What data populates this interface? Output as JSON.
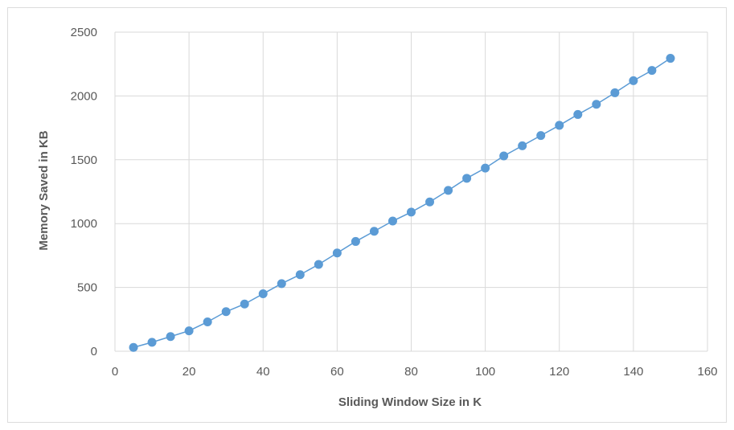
{
  "chart_data": {
    "type": "scatter",
    "title": "",
    "xlabel": "Sliding Window Size in K",
    "ylabel": "Memory Saved in KB",
    "xlim": [
      0,
      160
    ],
    "ylim": [
      0,
      2500
    ],
    "xticks": [
      0,
      20,
      40,
      60,
      80,
      100,
      120,
      140,
      160
    ],
    "yticks": [
      0,
      500,
      1000,
      1500,
      2000,
      2500
    ],
    "grid": true,
    "legend": "none",
    "colors": {
      "marker": "#5b9bd5",
      "line": "#5b9bd5",
      "grid": "#d9d9d9"
    },
    "series": [
      {
        "x": [
          5,
          10,
          15,
          20,
          25,
          30,
          35,
          40,
          45,
          50,
          55,
          60,
          65,
          70,
          75,
          80,
          85,
          90,
          95,
          100,
          105,
          110,
          115,
          120,
          125,
          130,
          135,
          140,
          145,
          150
        ],
        "y": [
          30,
          70,
          115,
          160,
          230,
          310,
          370,
          450,
          530,
          600,
          680,
          770,
          860,
          940,
          1020,
          1090,
          1170,
          1260,
          1355,
          1435,
          1530,
          1610,
          1690,
          1770,
          1855,
          1935,
          2025,
          2120,
          2200,
          2295
        ]
      }
    ]
  }
}
